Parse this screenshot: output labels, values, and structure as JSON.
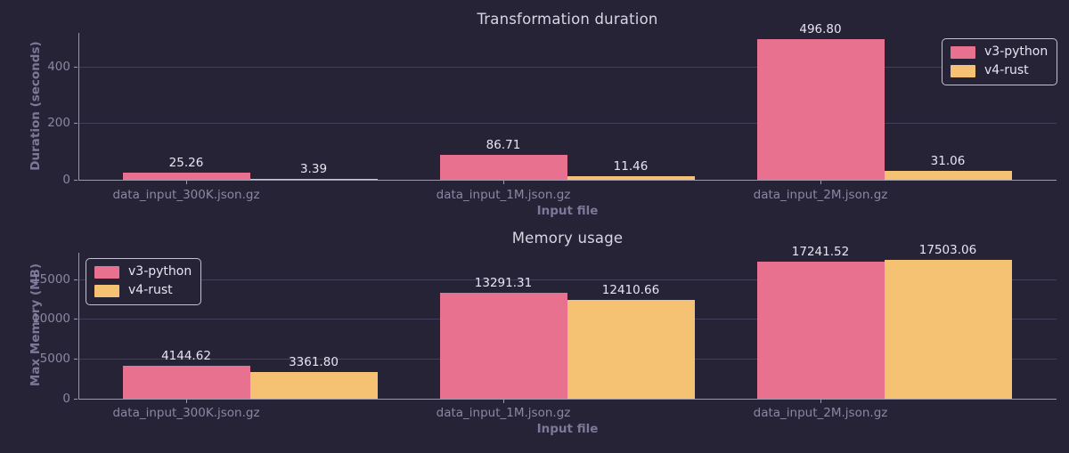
{
  "figure": {
    "background": "#262337",
    "colors": {
      "grid": "#423e5c",
      "spine": "#9b98ae",
      "tick_label": "#8b87a3",
      "axis_label": "#7d7899",
      "title": "#d8d5e2",
      "value_label": "#e7e5f0",
      "legend_border": "#c3c1d2",
      "legend_text": "#e7e5f0",
      "series_python": "#e8718f",
      "series_rust": "#f5c173"
    }
  },
  "chart_data": [
    {
      "type": "bar",
      "title": "Transformation duration",
      "xlabel": "Input file",
      "ylabel": "Duration (seconds)",
      "categories": [
        "data_input_300K.json.gz",
        "data_input_1M.json.gz",
        "data_input_2M.json.gz"
      ],
      "series": [
        {
          "name": "v3-python",
          "color": "#e8718f",
          "values": [
            25.26,
            86.71,
            496.8
          ]
        },
        {
          "name": "v4-rust",
          "color": "#f5c173",
          "values": [
            3.39,
            11.46,
            31.06
          ]
        }
      ],
      "value_labels": [
        [
          "25.26",
          "86.71",
          "496.80"
        ],
        [
          "3.39",
          "11.46",
          "31.06"
        ]
      ],
      "ylim": [
        0,
        520
      ],
      "yticks": [
        0,
        200,
        400
      ],
      "grid": true,
      "legend_position": "top-right"
    },
    {
      "type": "bar",
      "title": "Memory usage",
      "xlabel": "Input file",
      "ylabel": "Max Memory (MB)",
      "categories": [
        "data_input_300K.json.gz",
        "data_input_1M.json.gz",
        "data_input_2M.json.gz"
      ],
      "series": [
        {
          "name": "v3-python",
          "color": "#e8718f",
          "values": [
            4144.62,
            13291.31,
            17241.52
          ]
        },
        {
          "name": "v4-rust",
          "color": "#f5c173",
          "values": [
            3361.8,
            12410.66,
            17503.06
          ]
        }
      ],
      "value_labels": [
        [
          "4144.62",
          "13291.31",
          "17241.52"
        ],
        [
          "3361.80",
          "12410.66",
          "17503.06"
        ]
      ],
      "ylim": [
        0,
        18360
      ],
      "yticks": [
        0,
        5000,
        10000,
        15000
      ],
      "grid": true,
      "legend_position": "top-left"
    }
  ]
}
